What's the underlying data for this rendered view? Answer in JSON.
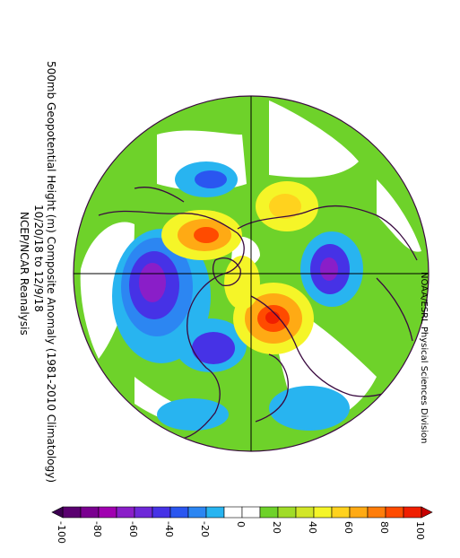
{
  "header": {
    "title": "500mb Geopotential Height (m) Composite Anomaly (1981-2010 Climatology)",
    "dates": "10/20/18 to 12/9/18",
    "source": "NCEP/NCAR Reanalysis"
  },
  "credit": "NOAA/ESRL Physical Sciences Division",
  "colors": {
    "ocean": "#ffffff",
    "coast": "#3a0a40",
    "grid": "#000000"
  },
  "colorbar": {
    "tick_labels": [
      "-100",
      "-80",
      "-60",
      "-40",
      "-20",
      "0",
      "20",
      "40",
      "60",
      "80",
      "100"
    ],
    "colors": [
      "#5a0070",
      "#7a0090",
      "#a000b0",
      "#8a1ec8",
      "#6e28d8",
      "#4632e6",
      "#2a56f0",
      "#2c86f2",
      "#28b4f0",
      "#ffffff",
      "#ffffff",
      "#6ed22a",
      "#a0dc28",
      "#d2e628",
      "#f5f528",
      "#ffd21e",
      "#ffaa14",
      "#ff7d0a",
      "#ff4b00",
      "#f01e00"
    ]
  },
  "map_data": {
    "projection": "north-polar-stereographic",
    "anomalies": [
      {
        "region": "Gulf of Alaska / western Canada",
        "value": -70
      },
      {
        "region": "Hudson Bay",
        "value": -60
      },
      {
        "region": "Western Europe / Atlantic",
        "value": -40
      },
      {
        "region": "Central Siberia",
        "value": -60
      },
      {
        "region": "Greenland / Arctic",
        "value": 60
      },
      {
        "region": "Scandinavia / Barents",
        "value": 80
      },
      {
        "region": "Western Russia / Urals",
        "value": 40
      },
      {
        "region": "Eastern Siberia",
        "value": 40
      }
    ]
  }
}
